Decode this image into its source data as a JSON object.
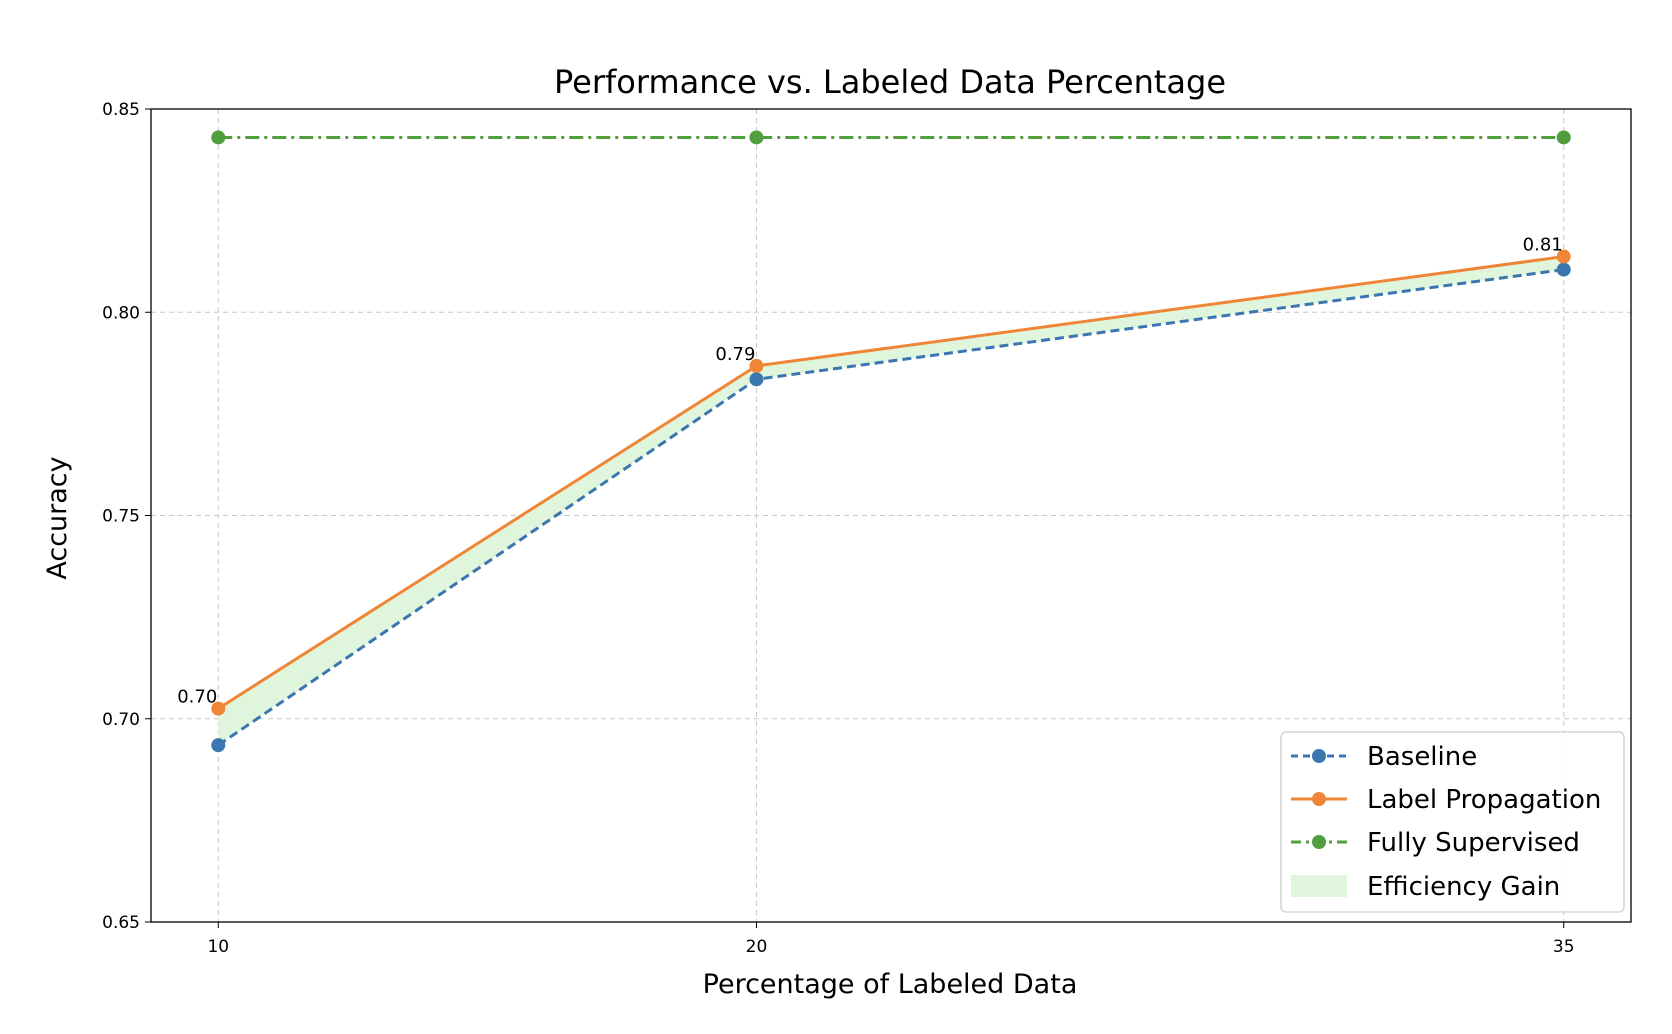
{
  "chart_data": {
    "type": "line",
    "title": "Performance vs. Labeled Data Percentage",
    "xlabel": "Percentage of Labeled Data",
    "ylabel": "Accuracy",
    "x": [
      10,
      20,
      35
    ],
    "x_tick_labels": [
      "10",
      "20",
      "35"
    ],
    "xlim": [
      8.75,
      36.25
    ],
    "ylim": [
      0.65,
      0.85
    ],
    "y_ticks": [
      0.65,
      0.7,
      0.75,
      0.8,
      0.85
    ],
    "y_tick_labels": [
      "0.65",
      "0.70",
      "0.75",
      "0.80",
      "0.85"
    ],
    "grid": true,
    "legend_position": "lower-right",
    "series": [
      {
        "name": "Baseline",
        "values": [
          0.6935,
          0.7835,
          0.8105
        ],
        "color": "#3a76af",
        "style": "dashed",
        "marker": "circle"
      },
      {
        "name": "Label Propagation",
        "values": [
          0.7025,
          0.7868,
          0.8137
        ],
        "color": "#ef8536",
        "style": "solid",
        "marker": "circle"
      },
      {
        "name": "Fully Supervised",
        "values": [
          0.843,
          0.843,
          0.843
        ],
        "color": "#519e3e",
        "style": "dashdot",
        "marker": "circle"
      }
    ],
    "fill": {
      "name": "Efficiency Gain",
      "between": [
        "Baseline",
        "Label Propagation"
      ],
      "color": "#dff5dc"
    },
    "annotations": [
      {
        "x": 10,
        "y": 0.7025,
        "text": "0.70"
      },
      {
        "x": 20,
        "y": 0.7868,
        "text": "0.79"
      },
      {
        "x": 35,
        "y": 0.8137,
        "text": "0.81"
      }
    ]
  }
}
